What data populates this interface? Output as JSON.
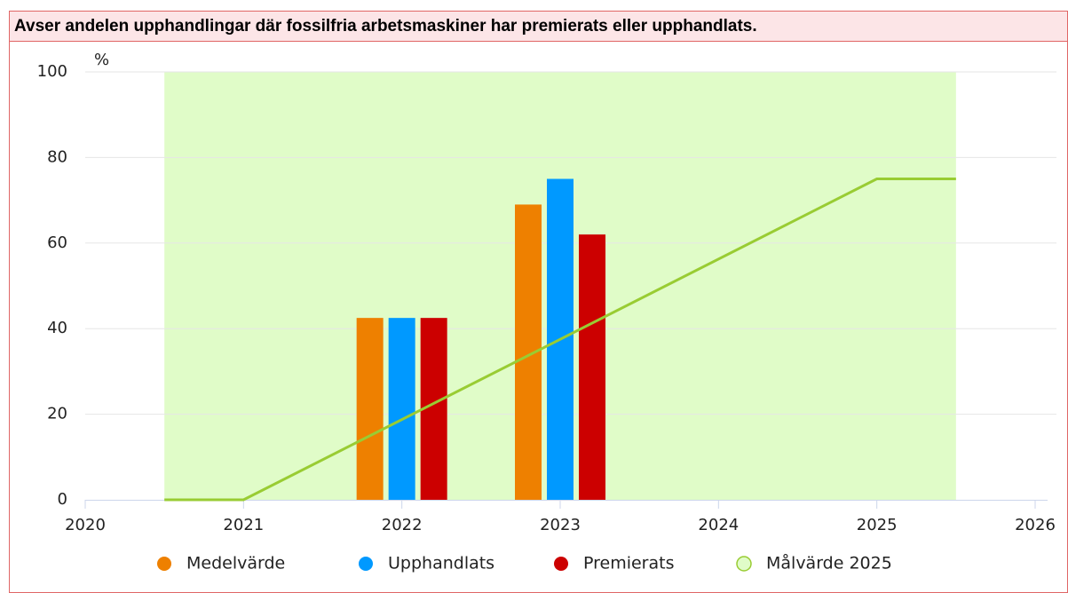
{
  "chart_data": {
    "type": "bar",
    "title": "Avser andelen upphandlingar där fossilfria arbetsmaskiner har premierats eller upphandlats.",
    "y_label": "%",
    "x": [
      2022,
      2023
    ],
    "series": [
      {
        "name": "Medelvärde",
        "color": "#ee8000",
        "values": [
          42.5,
          69
        ]
      },
      {
        "name": "Upphandlats",
        "color": "#0099ff",
        "values": [
          42.5,
          75
        ]
      },
      {
        "name": "Premierats",
        "color": "#cc0000",
        "values": [
          42.5,
          62
        ]
      },
      {
        "name": "Målvärde 2025",
        "type": "line",
        "color": "#99cc33",
        "x": [
          2020.5,
          2021,
          2025,
          2025.5
        ],
        "values": [
          0,
          0,
          75,
          75
        ]
      }
    ],
    "plot_band": {
      "xlim": [
        2020.5,
        2025.5
      ],
      "color": "#e0fcc8"
    },
    "xlim": [
      2020,
      2026
    ],
    "xticks": [
      2020,
      2021,
      2022,
      2023,
      2024,
      2025,
      2026
    ],
    "ylim": [
      0,
      100
    ],
    "yticks": [
      0,
      20,
      40,
      60,
      80,
      100
    ],
    "grid": true
  }
}
